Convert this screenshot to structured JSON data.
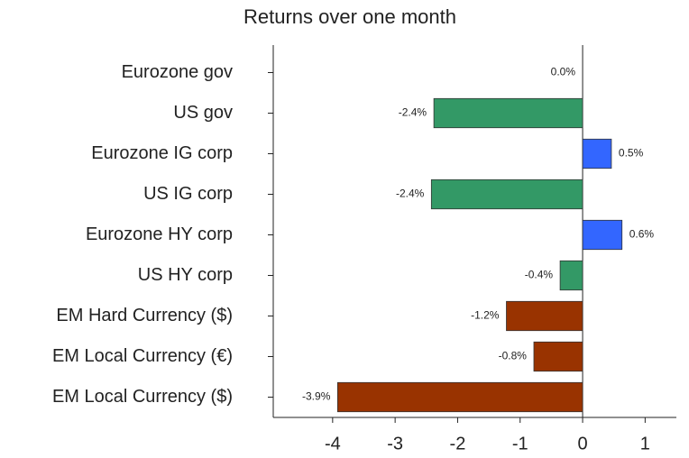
{
  "chart_data": {
    "type": "barh",
    "title": "Returns over one month",
    "categories": [
      "Eurozone gov",
      "US gov",
      "Eurozone IG corp",
      "US IG corp",
      "Eurozone HY corp",
      "US HY corp",
      "EM Hard Currency ($)",
      "EM Local Currency (€)",
      "EM Local Currency ($)"
    ],
    "values": [
      0.0,
      -2.38,
      0.46,
      -2.42,
      0.63,
      -0.36,
      -1.22,
      -0.78,
      -3.92
    ],
    "value_labels": [
      "0.0%",
      "-2.4%",
      "0.5%",
      "-2.4%",
      "0.6%",
      "-0.4%",
      "-1.2%",
      "-0.8%",
      "-3.9%"
    ],
    "colors": [
      "#339966",
      "#339966",
      "#3366ff",
      "#339966",
      "#3366ff",
      "#339966",
      "#993300",
      "#993300",
      "#993300"
    ],
    "xlim": [
      -4.95,
      1.5
    ],
    "xticks": [
      -4,
      -3,
      -2,
      -1,
      0,
      1
    ],
    "grid": false
  }
}
